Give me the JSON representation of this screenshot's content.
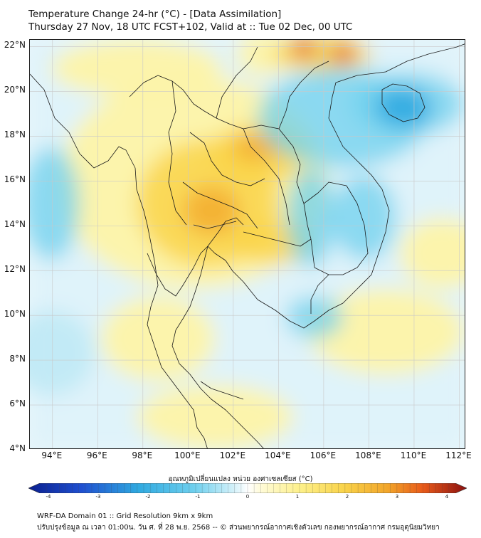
{
  "title_line1": "Temperature Change 24-hr (°C) - [Data Assimilation]",
  "title_line2": "Thursday 27 Nov, 18 UTC FCST+102, Valid at :: Tue 02 Dec, 00 UTC",
  "lat_labels": [
    "22°N",
    "20°N",
    "18°N",
    "16°N",
    "14°N",
    "12°N",
    "10°N",
    "8°N",
    "6°N",
    "4°N"
  ],
  "lon_labels": [
    "94°E",
    "96°E",
    "98°E",
    "100°E",
    "102°E",
    "104°E",
    "106°E",
    "108°E",
    "110°E",
    "112°E"
  ],
  "colorbar": {
    "title": "อุณหภูมิเปลี่ยนแปลง หน่วย องศาเซลเซียส (°C)",
    "min": -4,
    "max": 4,
    "ticks": [
      "-4",
      "-3",
      "-2",
      "-1",
      "0",
      "1",
      "2",
      "3",
      "4"
    ]
  },
  "footer_line1": "WRF-DA Domain 01 :: Grid Resolution 9km x 9km",
  "footer_line2": "ปรับปรุงข้อมูล ณ เวลา 01:00น. วัน ศ. ที่ 28 พ.ย. 2568 -- © ส่วนพยากรณ์อากาศเชิงตัวเลข กองพยากรณ์อากาศ กรมอุตุนิยมวิทยา",
  "colors": {
    "warm_light": "#fdf3a8",
    "warm": "#f9d34a",
    "hot": "#f2a52a",
    "hotter": "#e85a1a",
    "cool_light": "#bfe9f5",
    "cool": "#6fd0ee",
    "cold": "#2fa9e0"
  }
}
